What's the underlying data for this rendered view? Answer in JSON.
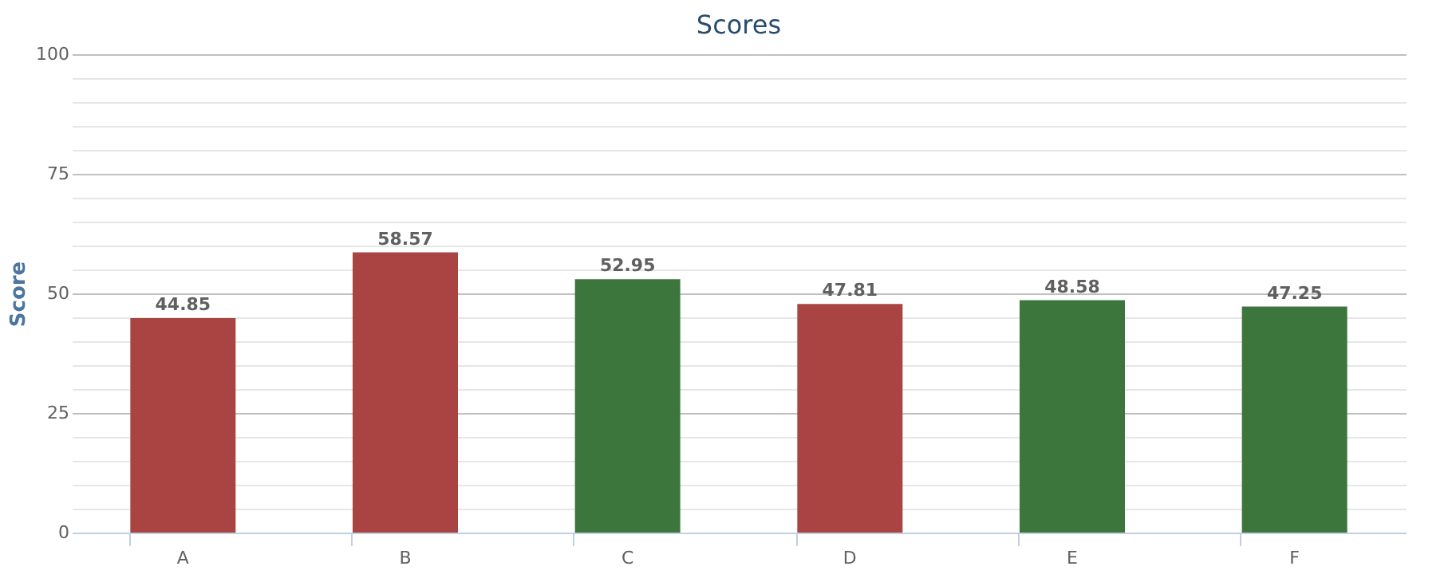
{
  "chart_data": {
    "type": "bar",
    "title": "Scores",
    "ylabel": "Score",
    "categories": [
      "A",
      "B",
      "C",
      "D",
      "E",
      "F"
    ],
    "values": [
      44.85,
      58.57,
      52.95,
      47.81,
      48.58,
      47.25
    ],
    "colors": [
      "#a94442",
      "#a94442",
      "#3c763d",
      "#a94442",
      "#3c763d",
      "#3c763d"
    ],
    "ylim": [
      0,
      100
    ],
    "yticks": [
      0,
      {
        "value": 5,
        "label": null
      },
      {
        "value": 10,
        "label": null
      },
      {
        "value": 15,
        "label": null
      },
      {
        "value": 20,
        "label": null
      },
      25,
      {
        "value": 30,
        "label": null
      },
      {
        "value": 35,
        "label": null
      },
      {
        "value": 40,
        "label": null
      },
      {
        "value": 45,
        "label": null
      },
      50,
      {
        "value": 55,
        "label": null
      },
      {
        "value": 60,
        "label": null
      },
      {
        "value": 65,
        "label": null
      },
      {
        "value": 70,
        "label": null
      },
      75,
      {
        "value": 80,
        "label": null
      },
      {
        "value": 85,
        "label": null
      },
      {
        "value": 90,
        "label": null
      },
      {
        "value": 95,
        "label": null
      },
      100
    ],
    "grid": true,
    "data_labels": true
  }
}
